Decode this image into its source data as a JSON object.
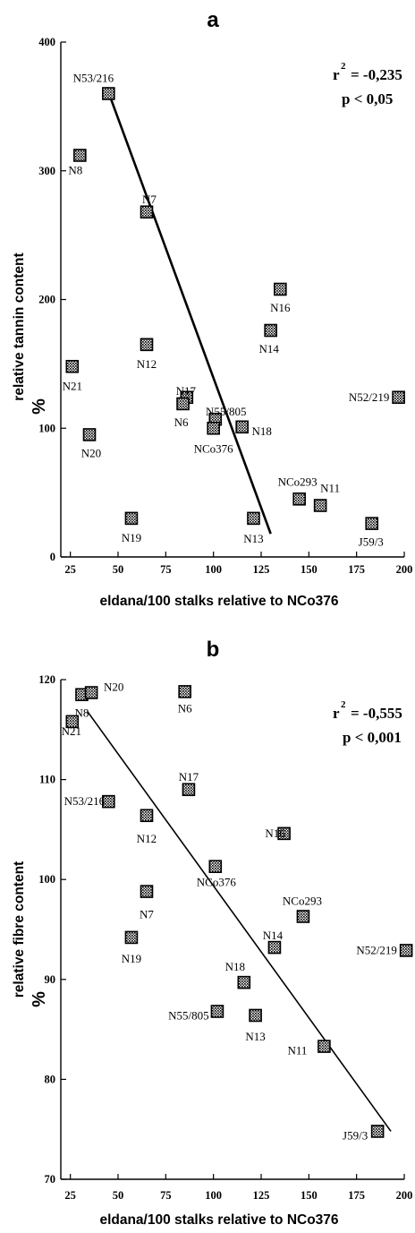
{
  "chart_data": [
    {
      "type": "scatter",
      "panel_label": "a",
      "ylabel": "relative tannin content",
      "ylabel_unit": "%",
      "xlabel": "eldana/100 stalks relative to NCo376",
      "xlim": [
        20,
        200
      ],
      "ylim": [
        0,
        400
      ],
      "xticks": [
        25,
        50,
        75,
        100,
        125,
        150,
        175,
        200
      ],
      "yticks": [
        0,
        100,
        200,
        300,
        400
      ],
      "stats": {
        "r2_label": "r",
        "r2_value": "= -0,235",
        "p_text": "p  < 0,05"
      },
      "regression": {
        "x1": 44,
        "y1": 365,
        "x2": 130,
        "y2": 18
      },
      "points": [
        {
          "label": "N53/216",
          "x": 45,
          "y": 360
        },
        {
          "label": "N8",
          "x": 30,
          "y": 312
        },
        {
          "label": "N7",
          "x": 65,
          "y": 268
        },
        {
          "label": "N16",
          "x": 135,
          "y": 208
        },
        {
          "label": "N14",
          "x": 130,
          "y": 176
        },
        {
          "label": "N12",
          "x": 65,
          "y": 165
        },
        {
          "label": "N21",
          "x": 26,
          "y": 148
        },
        {
          "label": "N17",
          "x": 86,
          "y": 124
        },
        {
          "label": "N6",
          "x": 84,
          "y": 119
        },
        {
          "label": "N52/219",
          "x": 197,
          "y": 124
        },
        {
          "label": "N55/805",
          "x": 101,
          "y": 107
        },
        {
          "label": "NCo376",
          "x": 100,
          "y": 100
        },
        {
          "label": "N18",
          "x": 115,
          "y": 101
        },
        {
          "label": "N20",
          "x": 35,
          "y": 95
        },
        {
          "label": "NCo293",
          "x": 145,
          "y": 45
        },
        {
          "label": "N11",
          "x": 156,
          "y": 40
        },
        {
          "label": "N19",
          "x": 57,
          "y": 30
        },
        {
          "label": "N13",
          "x": 121,
          "y": 30
        },
        {
          "label": "J59/3",
          "x": 183,
          "y": 26
        }
      ]
    },
    {
      "type": "scatter",
      "panel_label": "b",
      "ylabel": "relative fibre content",
      "ylabel_unit": "%",
      "xlabel": "eldana/100 stalks relative to NCo376",
      "xlim": [
        20,
        200
      ],
      "ylim": [
        70,
        120
      ],
      "xticks": [
        25,
        50,
        75,
        100,
        125,
        150,
        175,
        200
      ],
      "yticks": [
        70,
        80,
        90,
        100,
        110,
        120
      ],
      "stats": {
        "r2_label": "r",
        "r2_value": "= -0,555",
        "p_text": "p  < 0,001"
      },
      "regression": {
        "x1": 34,
        "y1": 116.8,
        "x2": 193,
        "y2": 74.8
      },
      "points": [
        {
          "label": "N8",
          "x": 31,
          "y": 118.5
        },
        {
          "label": "N20",
          "x": 36,
          "y": 118.7
        },
        {
          "label": "N21",
          "x": 26,
          "y": 115.8
        },
        {
          "label": "N6",
          "x": 85,
          "y": 118.8
        },
        {
          "label": "N53/216",
          "x": 45,
          "y": 107.8
        },
        {
          "label": "N17",
          "x": 87,
          "y": 109.0
        },
        {
          "label": "N12",
          "x": 65,
          "y": 106.4
        },
        {
          "label": "N16",
          "x": 137,
          "y": 104.6
        },
        {
          "label": "NCo376",
          "x": 101,
          "y": 101.3
        },
        {
          "label": "N7",
          "x": 65,
          "y": 98.8
        },
        {
          "label": "NCo293",
          "x": 147,
          "y": 96.3
        },
        {
          "label": "N19",
          "x": 57,
          "y": 94.2
        },
        {
          "label": "N14",
          "x": 132,
          "y": 93.2
        },
        {
          "label": "N52/219",
          "x": 201,
          "y": 92.9
        },
        {
          "label": "N18",
          "x": 116,
          "y": 89.7
        },
        {
          "label": "N55/805",
          "x": 102,
          "y": 86.8
        },
        {
          "label": "N13",
          "x": 122,
          "y": 86.4
        },
        {
          "label": "N11",
          "x": 158,
          "y": 83.3
        },
        {
          "label": "J59/3",
          "x": 186,
          "y": 74.8
        }
      ]
    }
  ]
}
